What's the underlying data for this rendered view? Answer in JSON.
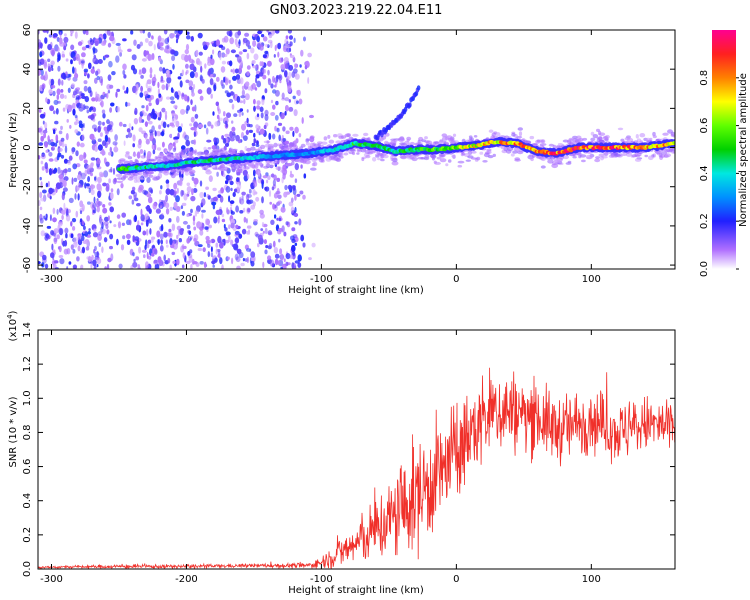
{
  "figure": {
    "title": "GN03.2023.219.22.04.E11"
  },
  "colors": {
    "snr_line": "#f0302a",
    "spectro_low": "#b070ff",
    "spectro_mid": "#00e8e0",
    "spectro_high": "#ff2020"
  },
  "chart_data": [
    {
      "type": "heatmap",
      "name": "spectrogram",
      "xlabel": "Height of straight line (km)",
      "ylabel": "Frequency (Hz)",
      "xlim": [
        -310,
        162
      ],
      "ylim": [
        -62,
        60
      ],
      "xticks": [
        "-300",
        "-200",
        "-100",
        "0",
        "100"
      ],
      "xtick_values": [
        -300,
        -200,
        -100,
        0,
        100
      ],
      "yticks": [
        "60",
        "40",
        "20",
        "0",
        "-20",
        "-40",
        "-60"
      ],
      "ytick_values": [
        60,
        40,
        20,
        0,
        -20,
        -40,
        -60
      ],
      "colorbar": {
        "label": "Normalized spectral amplitude",
        "range": [
          0,
          1
        ],
        "ticks": [
          "0.0",
          "0.2",
          "0.4",
          "0.6",
          "0.8"
        ],
        "tick_values": [
          0.0,
          0.2,
          0.4,
          0.6,
          0.8
        ]
      },
      "main_band": {
        "x": [
          -248,
          -230,
          -210,
          -190,
          -170,
          -150,
          -130,
          -110,
          -90,
          -75,
          -60,
          -45,
          -30,
          -15,
          0,
          15,
          30,
          45,
          60,
          75,
          90,
          105,
          120,
          140,
          160
        ],
        "freq": [
          -11,
          -10,
          -9,
          -7,
          -6,
          -5,
          -4,
          -3,
          -1,
          2,
          1,
          -2,
          -1,
          -1,
          0,
          1,
          3,
          2,
          -2,
          -3,
          0,
          0,
          0,
          0,
          2
        ],
        "amplitude": [
          0.55,
          0.45,
          0.4,
          0.45,
          0.45,
          0.35,
          0.3,
          0.3,
          0.4,
          0.5,
          0.45,
          0.45,
          0.5,
          0.55,
          0.6,
          0.7,
          0.75,
          0.8,
          0.85,
          0.85,
          0.9,
          0.9,
          0.85,
          0.8,
          0.75
        ]
      },
      "secondary_branch": {
        "x": [
          -60,
          -50,
          -42,
          -35,
          -28
        ],
        "freq": [
          5,
          10,
          16,
          22,
          30
        ]
      }
    },
    {
      "type": "line",
      "name": "snr",
      "xlabel": "Height of straight line (km)",
      "ylabel": "SNR (10 * v/v)",
      "multiplier": "(x10",
      "multiplier_exp": "4",
      "multiplier_close": ")",
      "xlim": [
        -310,
        162
      ],
      "ylim": [
        0,
        1.4
      ],
      "xticks": [
        "-300",
        "-200",
        "-100",
        "0",
        "100"
      ],
      "xtick_values": [
        -300,
        -200,
        -100,
        0,
        100
      ],
      "yticks": [
        "0.0",
        "0.2",
        "0.4",
        "0.6",
        "0.8",
        "1.0",
        "1.2",
        "1.4"
      ],
      "ytick_values": [
        0.0,
        0.2,
        0.4,
        0.6,
        0.8,
        1.0,
        1.2,
        1.4
      ],
      "series": [
        {
          "x": [
            -310,
            -250,
            -200,
            -150,
            -110,
            -100,
            -90,
            -80,
            -70,
            -60,
            -50,
            -40,
            -30,
            -20,
            -10,
            0,
            10,
            20,
            30,
            40,
            50,
            60,
            70,
            80,
            90,
            100,
            110,
            120,
            130,
            140,
            150,
            162
          ],
          "mean": [
            0.01,
            0.015,
            0.015,
            0.02,
            0.02,
            0.04,
            0.08,
            0.12,
            0.17,
            0.23,
            0.28,
            0.35,
            0.42,
            0.5,
            0.58,
            0.68,
            0.78,
            0.88,
            0.93,
            0.93,
            0.9,
            0.9,
            0.83,
            0.82,
            0.85,
            0.88,
            0.84,
            0.8,
            0.82,
            0.85,
            0.84,
            0.82
          ],
          "spread": [
            0.005,
            0.01,
            0.01,
            0.01,
            0.015,
            0.03,
            0.07,
            0.1,
            0.13,
            0.17,
            0.22,
            0.27,
            0.3,
            0.3,
            0.28,
            0.26,
            0.24,
            0.24,
            0.24,
            0.22,
            0.2,
            0.2,
            0.18,
            0.18,
            0.18,
            0.18,
            0.16,
            0.16,
            0.16,
            0.15,
            0.15,
            0.15
          ]
        }
      ]
    }
  ]
}
